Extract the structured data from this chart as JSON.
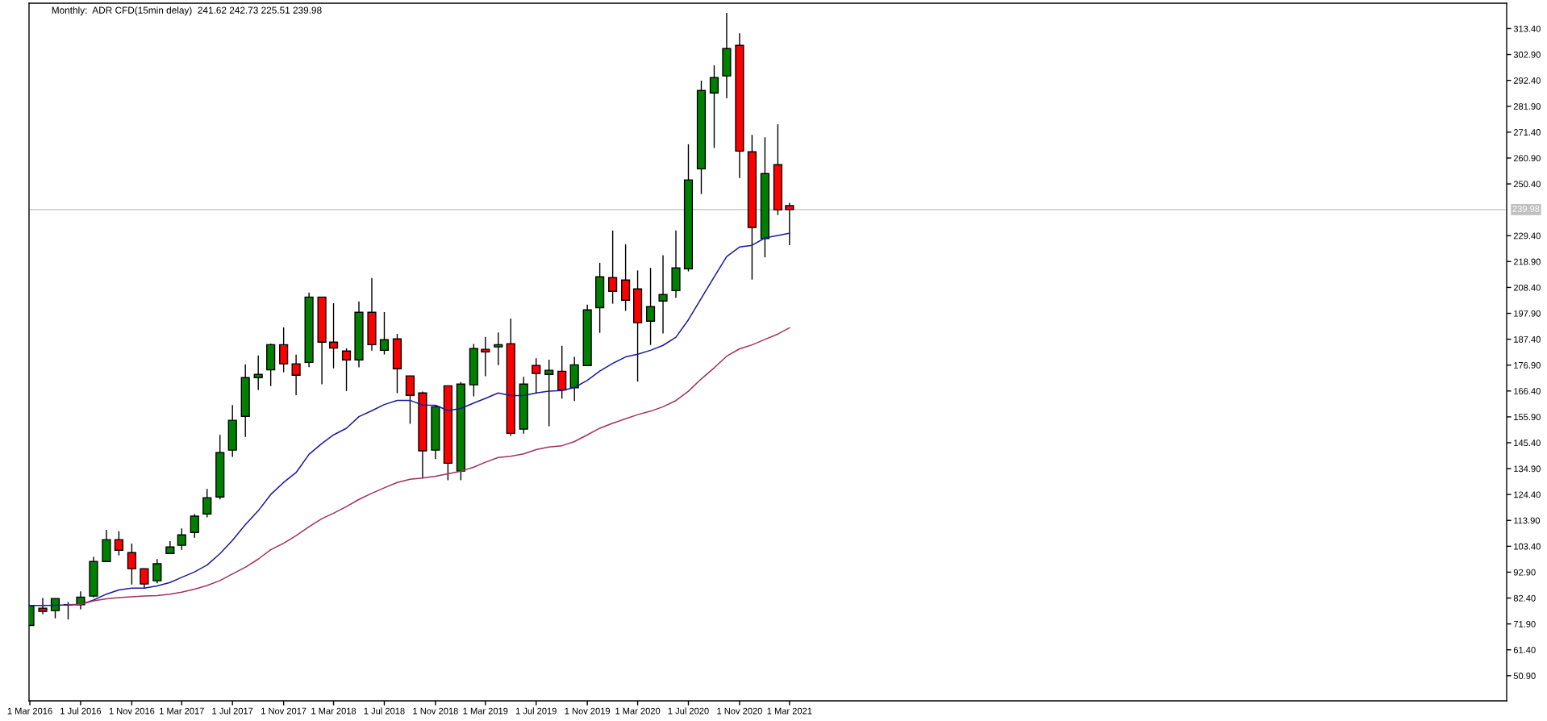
{
  "chart_data": {
    "type": "candlestick",
    "title": "Monthly:  ADR CFD(15min delay)  241.62 242.73 225.51 239.98",
    "x": [
      "2016-03",
      "2016-04",
      "2016-05",
      "2016-06",
      "2016-07",
      "2016-08",
      "2016-09",
      "2016-10",
      "2016-11",
      "2016-12",
      "2017-01",
      "2017-02",
      "2017-03",
      "2017-04",
      "2017-05",
      "2017-06",
      "2017-07",
      "2017-08",
      "2017-09",
      "2017-10",
      "2017-11",
      "2017-12",
      "2018-01",
      "2018-02",
      "2018-03",
      "2018-04",
      "2018-05",
      "2018-06",
      "2018-07",
      "2018-08",
      "2018-09",
      "2018-10",
      "2018-11",
      "2018-12",
      "2019-01",
      "2019-02",
      "2019-03",
      "2019-04",
      "2019-05",
      "2019-06",
      "2019-07",
      "2019-08",
      "2019-09",
      "2019-10",
      "2019-11",
      "2019-12",
      "2020-01",
      "2020-02",
      "2020-03",
      "2020-04",
      "2020-05",
      "2020-06",
      "2020-07",
      "2020-08",
      "2020-09",
      "2020-10",
      "2020-11",
      "2020-12",
      "2021-01",
      "2021-02",
      "2021-03"
    ],
    "ohlc": [
      [
        71.3,
        79.5,
        71.1,
        79.4
      ],
      [
        78.3,
        82.4,
        75.9,
        77.0
      ],
      [
        77.3,
        82.3,
        74.2,
        82.2
      ],
      [
        79.6,
        80.8,
        73.7,
        79.7
      ],
      [
        79.7,
        85.1,
        77.8,
        82.8
      ],
      [
        83.2,
        99.1,
        82.7,
        97.2
      ],
      [
        97.2,
        110.1,
        97.1,
        106.1
      ],
      [
        106.1,
        109.5,
        99.7,
        101.8
      ],
      [
        100.8,
        104.5,
        87.9,
        94.3
      ],
      [
        94.3,
        94.4,
        86.2,
        88.1
      ],
      [
        89.4,
        98.2,
        88.4,
        96.3
      ],
      [
        100.5,
        105.5,
        100.4,
        103.1
      ],
      [
        103.8,
        110.6,
        102.0,
        108.0
      ],
      [
        109.0,
        116.4,
        106.9,
        115.6
      ],
      [
        116.5,
        126.7,
        115.1,
        123.1
      ],
      [
        123.4,
        148.6,
        122.4,
        141.4
      ],
      [
        142.4,
        160.7,
        139.7,
        154.5
      ],
      [
        156.1,
        177.2,
        147.8,
        171.8
      ],
      [
        171.8,
        180.8,
        166.8,
        173.1
      ],
      [
        175.0,
        185.6,
        168.4,
        185.2
      ],
      [
        185.2,
        192.2,
        174.0,
        177.4
      ],
      [
        177.4,
        181.1,
        164.7,
        172.8
      ],
      [
        178.0,
        206.3,
        176.1,
        204.5
      ],
      [
        204.5,
        204.6,
        169.1,
        186.2
      ],
      [
        186.2,
        202.0,
        175.6,
        183.8
      ],
      [
        182.6,
        183.7,
        166.4,
        179.0
      ],
      [
        179.0,
        202.7,
        176.0,
        198.3
      ],
      [
        198.3,
        212.2,
        182.8,
        185.2
      ],
      [
        182.9,
        198.4,
        181.2,
        187.2
      ],
      [
        187.5,
        189.5,
        165.5,
        175.4
      ],
      [
        172.5,
        172.6,
        153.1,
        164.6
      ],
      [
        165.6,
        166.2,
        130.9,
        142.1
      ],
      [
        142.4,
        160.6,
        138.8,
        160.0
      ],
      [
        168.5,
        168.6,
        130.2,
        137.1
      ],
      [
        133.9,
        170.0,
        130.2,
        169.2
      ],
      [
        168.9,
        185.5,
        164.2,
        183.6
      ],
      [
        183.3,
        188.3,
        172.4,
        182.3
      ],
      [
        184.3,
        190.1,
        176.9,
        185.2
      ],
      [
        185.6,
        195.8,
        148.2,
        149.2
      ],
      [
        150.9,
        172.1,
        149.1,
        169.2
      ],
      [
        176.7,
        179.7,
        165.3,
        173.5
      ],
      [
        173.1,
        179.1,
        152.1,
        174.8
      ],
      [
        174.4,
        184.7,
        163.3,
        166.8
      ],
      [
        167.7,
        180.2,
        162.3,
        177.0
      ],
      [
        176.7,
        201.4,
        176.6,
        199.3
      ],
      [
        200.2,
        218.4,
        190.0,
        212.7
      ],
      [
        212.4,
        231.5,
        201.8,
        206.8
      ],
      [
        211.4,
        225.9,
        198.9,
        203.2
      ],
      [
        207.8,
        215.3,
        170.2,
        194.1
      ],
      [
        194.7,
        216.3,
        185.1,
        200.6
      ],
      [
        202.9,
        221.5,
        189.7,
        205.5
      ],
      [
        207.1,
        231.5,
        204.2,
        216.3
      ],
      [
        216.0,
        266.5,
        214.9,
        252.0
      ],
      [
        256.5,
        292.3,
        246.3,
        288.3
      ],
      [
        287.3,
        298.5,
        265.0,
        293.5
      ],
      [
        294.2,
        319.8,
        285.2,
        305.3
      ],
      [
        306.6,
        311.5,
        252.8,
        263.7
      ],
      [
        263.4,
        270.3,
        211.6,
        232.7
      ],
      [
        228.2,
        269.3,
        220.6,
        254.6
      ],
      [
        258.2,
        274.6,
        237.8,
        239.9
      ],
      [
        241.62,
        242.73,
        225.51,
        239.98
      ]
    ],
    "colors": [
      "#008000",
      "#ff0000",
      "#008000",
      "#008000",
      "#008000",
      "#008000",
      "#008000",
      "#ff0000",
      "#ff0000",
      "#ff0000",
      "#008000",
      "#008000",
      "#008000",
      "#008000",
      "#008000",
      "#008000",
      "#008000",
      "#008000",
      "#008000",
      "#008000",
      "#ff0000",
      "#ff0000",
      "#008000",
      "#ff0000",
      "#ff0000",
      "#ff0000",
      "#008000",
      "#ff0000",
      "#008000",
      "#ff0000",
      "#ff0000",
      "#ff0000",
      "#008000",
      "#ff0000",
      "#008000",
      "#008000",
      "#ff0000",
      "#008000",
      "#ff0000",
      "#008000",
      "#ff0000",
      "#008000",
      "#ff0000",
      "#008000",
      "#008000",
      "#008000",
      "#ff0000",
      "#ff0000",
      "#ff0000",
      "#008000",
      "#008000",
      "#008000",
      "#008000",
      "#008000",
      "#008000",
      "#008000",
      "#ff0000",
      "#ff0000",
      "#008000",
      "#ff0000",
      "#ff0000"
    ],
    "series": [
      {
        "type": "line",
        "color": "#1a1a9c",
        "values": [
          79.4,
          79.4,
          79.5,
          79.6,
          79.7,
          81.6,
          84.0,
          85.7,
          86.4,
          86.4,
          87.3,
          88.7,
          90.8,
          93.0,
          95.8,
          100.4,
          105.8,
          112.2,
          117.8,
          124.4,
          129.3,
          133.3,
          140.7,
          145.1,
          148.6,
          151.3,
          156.0,
          158.4,
          160.9,
          162.6,
          162.6,
          160.7,
          160.6,
          158.5,
          159.3,
          161.5,
          163.4,
          165.6,
          164.5,
          164.5,
          165.6,
          166.3,
          166.6,
          167.8,
          170.7,
          174.5,
          177.6,
          180.2,
          181.3,
          182.9,
          184.9,
          188.2,
          195.3,
          204.0,
          212.7,
          220.9,
          224.8,
          225.5,
          228.5,
          229.5,
          230.4
        ]
      },
      {
        "type": "line",
        "color": "#a3305c",
        "values": [
          null,
          null,
          null,
          79.7,
          79.9,
          81.3,
          82.1,
          82.6,
          82.9,
          83.2,
          83.4,
          84.0,
          84.8,
          86.0,
          87.5,
          89.5,
          92.2,
          94.9,
          98.2,
          102.0,
          104.6,
          107.7,
          111.3,
          114.6,
          116.8,
          119.5,
          122.4,
          124.9,
          127.1,
          129.3,
          130.6,
          131.1,
          131.8,
          132.8,
          133.9,
          135.5,
          137.5,
          139.4,
          139.9,
          140.9,
          142.6,
          143.7,
          144.2,
          145.9,
          148.6,
          151.3,
          153.3,
          155.1,
          156.8,
          158.2,
          160.0,
          162.5,
          166.3,
          171.3,
          175.8,
          180.5,
          183.5,
          185.1,
          187.3,
          189.5,
          192.0
        ]
      }
    ],
    "xlim": [
      "2016-02-28",
      "2025-11-19"
    ],
    "xticks": [
      {
        "value": "2016-03-01",
        "label": "1 Mar 2016"
      },
      {
        "value": "2016-07-01",
        "label": "1 Jul 2016"
      },
      {
        "value": "2016-11-01",
        "label": "1 Nov 2016"
      },
      {
        "value": "2017-03-01",
        "label": "1 Mar 2017"
      },
      {
        "value": "2017-07-01",
        "label": "1 Jul 2017"
      },
      {
        "value": "2017-11-01",
        "label": "1 Nov 2017"
      },
      {
        "value": "2018-03-01",
        "label": "1 Mar 2018"
      },
      {
        "value": "2018-07-01",
        "label": "1 Jul 2018"
      },
      {
        "value": "2018-11-01",
        "label": "1 Nov 2018"
      },
      {
        "value": "2019-03-01",
        "label": "1 Mar 2019"
      },
      {
        "value": "2019-07-01",
        "label": "1 Jul 2019"
      },
      {
        "value": "2019-11-01",
        "label": "1 Nov 2019"
      },
      {
        "value": "2020-03-01",
        "label": "1 Mar 2020"
      },
      {
        "value": "2020-07-01",
        "label": "1 Jul 2020"
      },
      {
        "value": "2020-11-01",
        "label": "1 Nov 2020"
      },
      {
        "value": "2021-03-01",
        "label": "1 Mar 2021"
      }
    ],
    "ylim": [
      40.7,
      323.7
    ],
    "yticks": [
      {
        "value": 50.9,
        "label": "50.90"
      },
      {
        "value": 61.4,
        "label": "61.40"
      },
      {
        "value": 71.9,
        "label": "71.90"
      },
      {
        "value": 82.4,
        "label": "82.40"
      },
      {
        "value": 92.9,
        "label": "92.90"
      },
      {
        "value": 103.4,
        "label": "103.40"
      },
      {
        "value": 113.9,
        "label": "113.90"
      },
      {
        "value": 124.4,
        "label": "124.40"
      },
      {
        "value": 134.9,
        "label": "134.90"
      },
      {
        "value": 145.4,
        "label": "145.40"
      },
      {
        "value": 155.9,
        "label": "155.90"
      },
      {
        "value": 166.4,
        "label": "166.40"
      },
      {
        "value": 176.9,
        "label": "176.90"
      },
      {
        "value": 187.4,
        "label": "187.40"
      },
      {
        "value": 197.9,
        "label": "197.90"
      },
      {
        "value": 208.4,
        "label": "208.40"
      },
      {
        "value": 218.9,
        "label": "218.90"
      },
      {
        "value": 229.4,
        "label": "229.40"
      },
      {
        "value": 250.4,
        "label": "250.40"
      },
      {
        "value": 260.9,
        "label": "260.90"
      },
      {
        "value": 271.4,
        "label": "271.40"
      },
      {
        "value": 281.9,
        "label": "281.90"
      },
      {
        "value": 292.4,
        "label": "292.40"
      },
      {
        "value": 302.9,
        "label": "302.90"
      },
      {
        "value": 313.4,
        "label": "313.40"
      }
    ],
    "ref_lines": [
      {
        "axis": "y",
        "value": 239.98,
        "label": "239.98",
        "color": "#c0c0c0"
      }
    ]
  }
}
